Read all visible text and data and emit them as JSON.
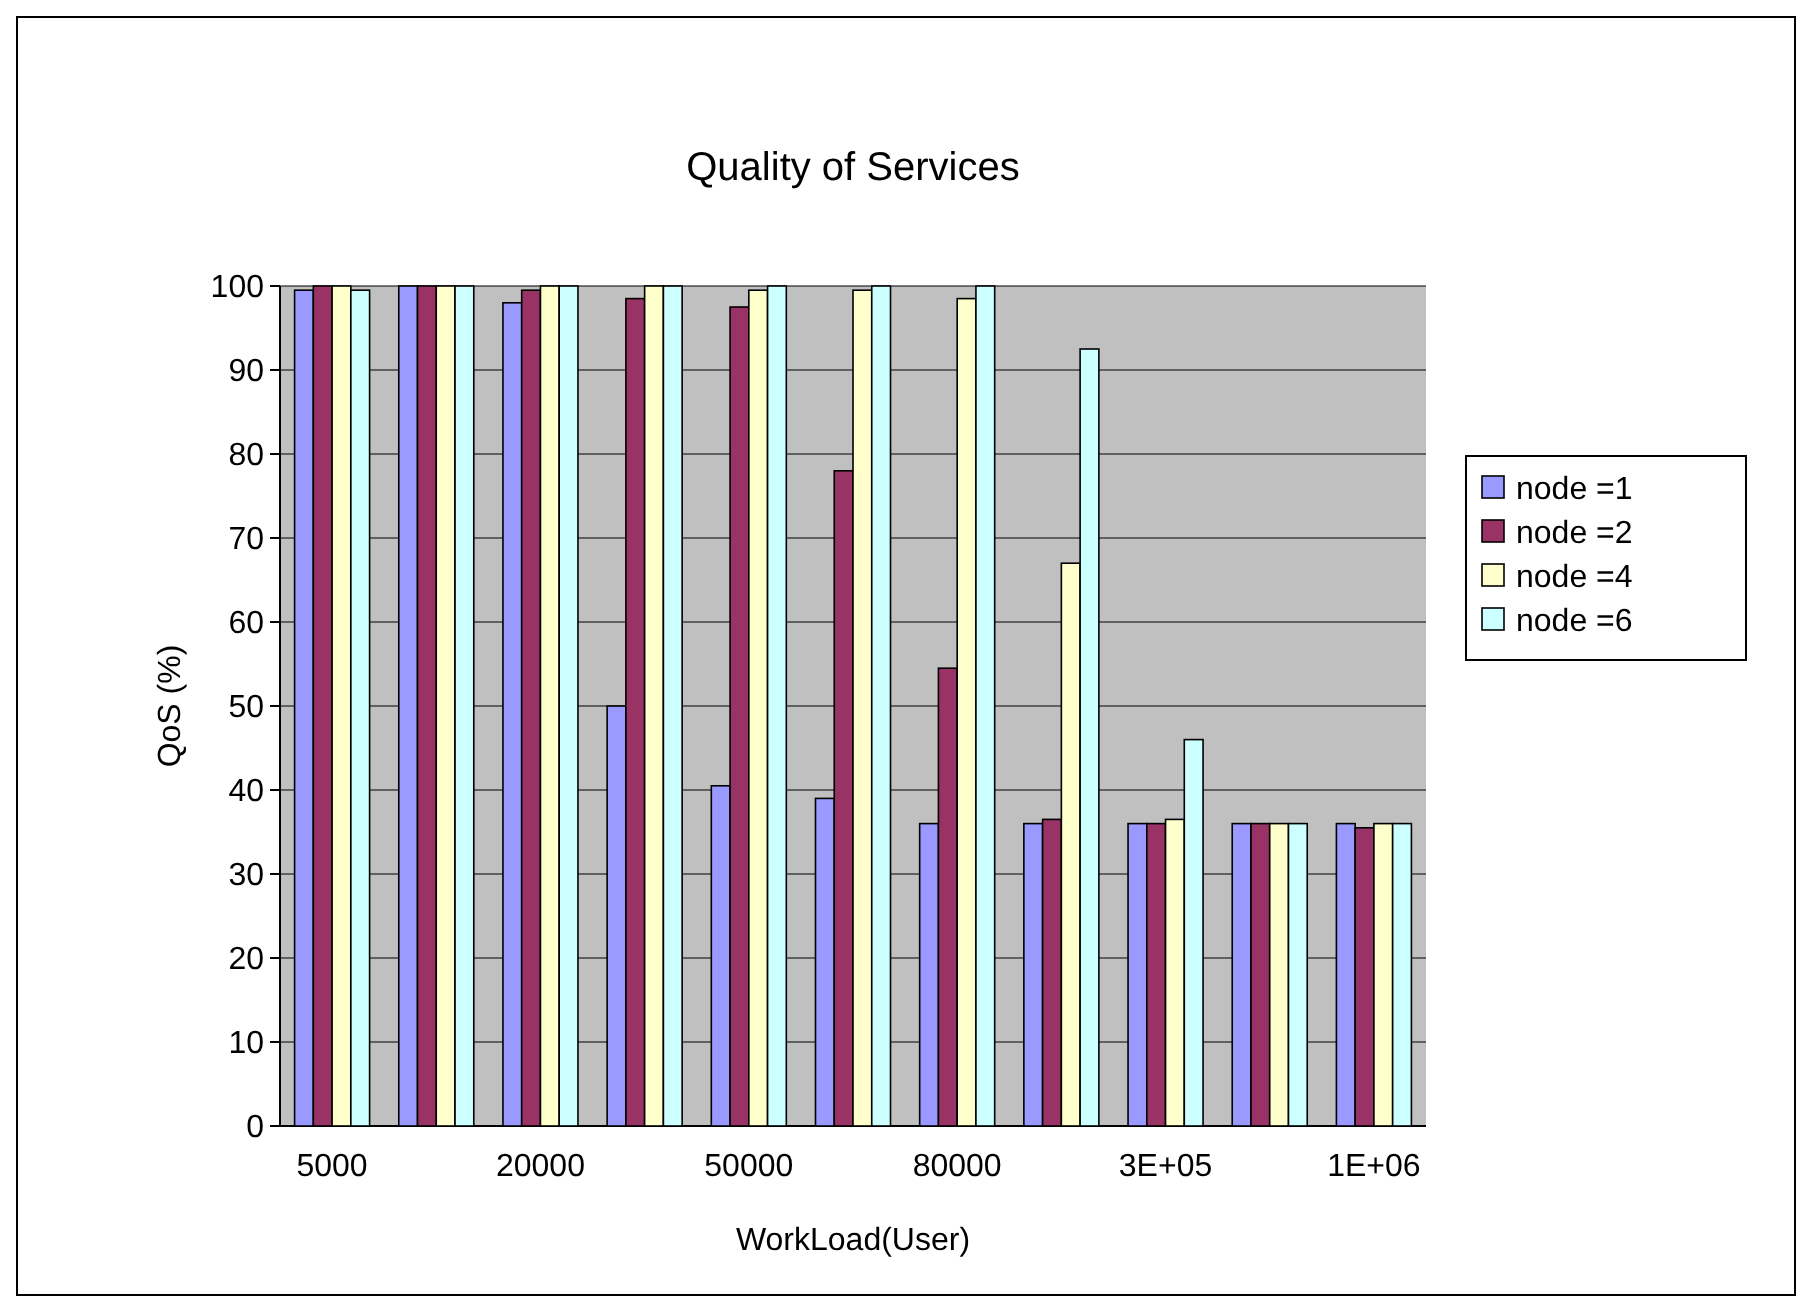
{
  "chart_data": {
    "type": "bar",
    "title": "Quality of Services",
    "xlabel": "WorkLoad(User)",
    "ylabel": "QoS (%)",
    "categories": [
      "5000",
      null,
      "20000",
      null,
      "50000",
      null,
      "80000",
      null,
      "3E+05",
      null,
      "1E+06"
    ],
    "series": [
      {
        "name": "node =1",
        "color": "#9999ff",
        "values": [
          99.5,
          100,
          98,
          50,
          40.5,
          39,
          36,
          36,
          36,
          36,
          36
        ]
      },
      {
        "name": "node =2",
        "color": "#993366",
        "values": [
          100,
          100,
          99.5,
          98.5,
          97.5,
          78,
          54.5,
          36.5,
          36,
          36,
          35.5
        ]
      },
      {
        "name": "node =4",
        "color": "#ffffcc",
        "values": [
          100,
          100,
          100,
          100,
          99.5,
          99.5,
          98.5,
          67,
          36.5,
          36,
          36
        ]
      },
      {
        "name": "node =6",
        "color": "#ccffff",
        "values": [
          99.5,
          100,
          100,
          100,
          100,
          100,
          100,
          92.5,
          46,
          36,
          36
        ]
      }
    ],
    "ylim": [
      0,
      100
    ],
    "yticks": [
      0,
      10,
      20,
      30,
      40,
      50,
      60,
      70,
      80,
      90,
      100
    ],
    "grid": "y",
    "legend": "right"
  }
}
